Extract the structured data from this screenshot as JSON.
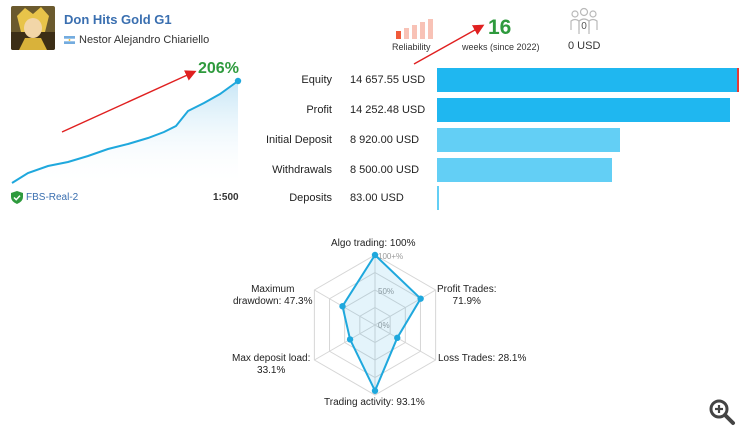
{
  "header": {
    "title": "Don Hits Gold G1",
    "author": "Nestor Alejandro Chiariello",
    "reliability_label": "Reliability",
    "weeks_value": "16",
    "weeks_label": "weeks (since 2022)",
    "subscribers_count": "0",
    "subscribers_value": "0 USD"
  },
  "growth": {
    "percent": "206%",
    "account": "FBS-Real-2",
    "leverage": "1:500"
  },
  "stats": [
    {
      "label": "Equity",
      "value": "14 657.55 USD",
      "fraction": 1.0,
      "color": "#1fb7f0"
    },
    {
      "label": "Profit",
      "value": "14 252.48 USD",
      "fraction": 0.972,
      "color": "#1fb7f0"
    },
    {
      "label": "Initial Deposit",
      "value": "8 920.00 USD",
      "fraction": 0.608,
      "color": "#63cff5"
    },
    {
      "label": "Withdrawals",
      "value": "8 500.00 USD",
      "fraction": 0.58,
      "color": "#63cff5"
    },
    {
      "label": "Deposits",
      "value": "83.00 USD",
      "fraction": 0.006,
      "color": "#63cff5"
    }
  ],
  "radar": {
    "ticks": [
      "100+%",
      "50%",
      "0%"
    ],
    "axes": [
      {
        "label": "Algo trading: 100%",
        "value": 100
      },
      {
        "label": "Profit Trades:\n71.9%",
        "value": 71.9
      },
      {
        "label": "Loss Trades: 28.1%",
        "value": 28.1
      },
      {
        "label": "Trading activity: 93.1%",
        "value": 93.1
      },
      {
        "label": "Max deposit load:\n33.1%",
        "value": 33.1
      },
      {
        "label": "Maximum\ndrawdown: 47.3%",
        "value": 47.3
      }
    ]
  },
  "colors": {
    "accent": "#1fa8dd",
    "green": "#2e9a3d",
    "link": "#3a6fb0",
    "arrow": "#e02020"
  },
  "icons": {
    "zoom": "zoom-in-icon",
    "subscribers": "users-icon",
    "verified": "shield-check-icon"
  }
}
